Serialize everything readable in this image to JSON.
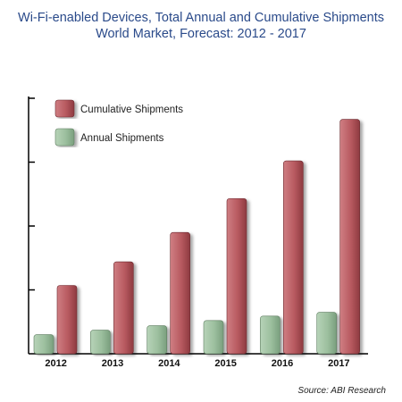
{
  "title_line1": "Wi-Fi-enabled Devices, Total Annual and Cumulative Shipments",
  "title_line2": "World Market, Forecast: 2012 - 2017",
  "source": "Source: ABI Research",
  "colors": {
    "cumulative": "#b85a60",
    "annual": "#9cbf9e",
    "title": "#2a4a8a"
  },
  "chart_data": {
    "type": "bar",
    "title": "Wi-Fi-enabled Devices, Total Annual and Cumulative Shipments",
    "subtitle": "World Market, Forecast: 2012 - 2017",
    "categories": [
      "2012",
      "2013",
      "2014",
      "2015",
      "2016",
      "2017"
    ],
    "series": [
      {
        "name": "Annual Shipments",
        "values": [
          0.3,
          0.37,
          0.44,
          0.52,
          0.59,
          0.65
        ],
        "color": "#9cbf9e"
      },
      {
        "name": "Cumulative Shipments",
        "values": [
          1.07,
          1.44,
          1.9,
          2.43,
          3.02,
          3.67
        ],
        "color": "#b85a60"
      }
    ],
    "ylim": [
      0,
      4
    ],
    "y_ticks": [
      1,
      2,
      3,
      4
    ],
    "y_tick_labels_shown": false,
    "legend": "top-left",
    "grid": false
  }
}
